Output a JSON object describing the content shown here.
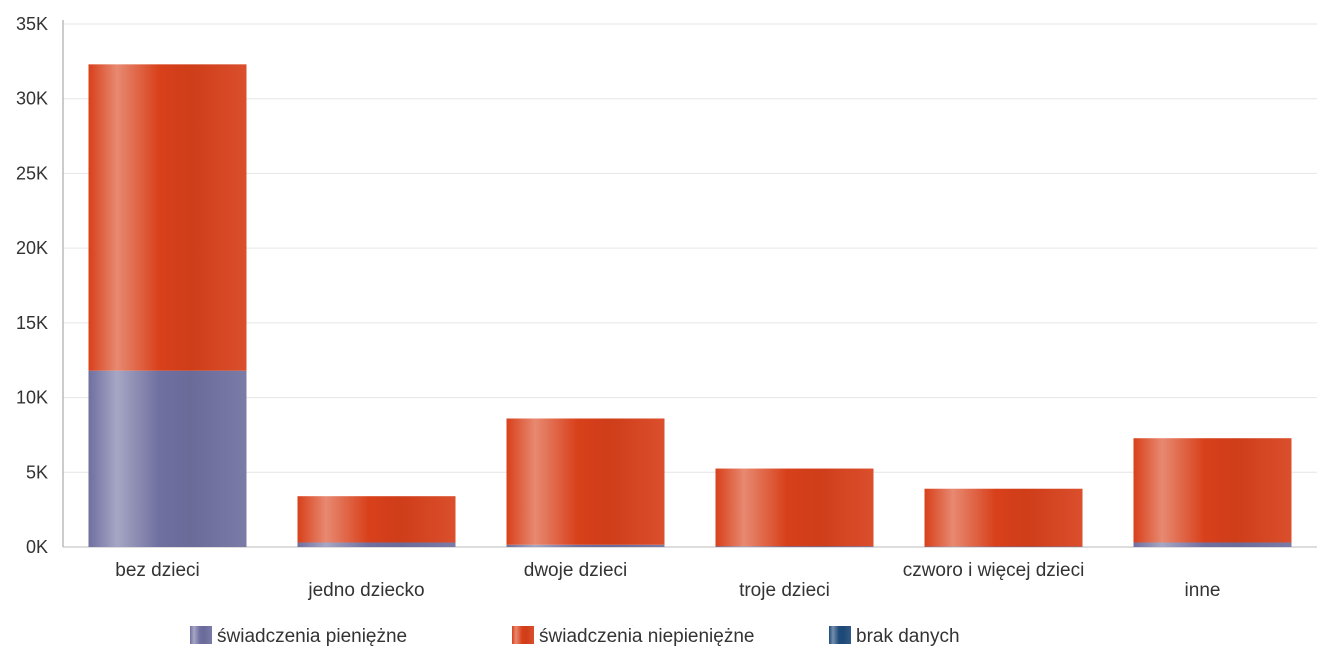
{
  "chart_data": {
    "type": "bar",
    "stacked": true,
    "categories": [
      "bez dzieci",
      "jedno dziecko",
      "dwoje dzieci",
      "troje dzieci",
      "czworo i więcej dzieci",
      "inne"
    ],
    "series": [
      {
        "name": "świadczenia pieniężne",
        "color": "#6f6fa0",
        "values": [
          11800,
          300,
          150,
          50,
          30,
          300
        ]
      },
      {
        "name": "świadczenia niepieniężne",
        "color": "#d8401a",
        "values": [
          20500,
          3100,
          8450,
          5200,
          3870,
          6980
        ]
      },
      {
        "name": "brak danych",
        "color": "#1f4b7a",
        "values": [
          0,
          0,
          0,
          0,
          0,
          0
        ]
      }
    ],
    "y_ticks": [
      "0K",
      "5K",
      "10K",
      "15K",
      "20K",
      "25K",
      "30K",
      "35K"
    ],
    "ylim": [
      0,
      35000
    ],
    "grid": true,
    "legend_position": "bottom"
  }
}
